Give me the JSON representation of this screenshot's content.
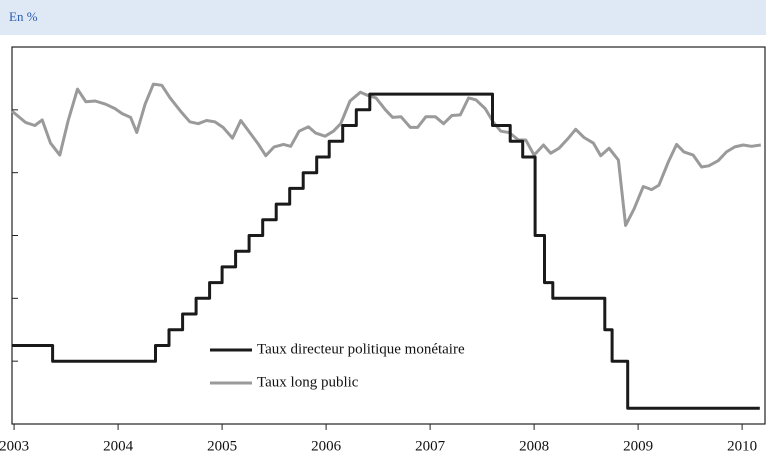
{
  "chart_data": {
    "type": "line",
    "subtitle": "En %",
    "xlim": [
      2002.98,
      2010.22
    ],
    "xticks": [
      2003,
      2004,
      2005,
      2006,
      2007,
      2008,
      2009,
      2010
    ],
    "ylim": [
      0,
      6
    ],
    "yticks": [
      0,
      1,
      2,
      3,
      4,
      5
    ],
    "series": [
      {
        "name": "Taux directeur politique monétaire",
        "color": "#1a1a1a",
        "x": [
          2002.98,
          2003.37,
          2003.37,
          2004.36,
          2004.36,
          2004.49,
          2004.49,
          2004.62,
          2004.62,
          2004.75,
          2004.75,
          2004.88,
          2004.88,
          2005.0,
          2005.0,
          2005.13,
          2005.13,
          2005.26,
          2005.26,
          2005.39,
          2005.39,
          2005.52,
          2005.52,
          2005.65,
          2005.65,
          2005.78,
          2005.78,
          2005.91,
          2005.91,
          2006.03,
          2006.03,
          2006.16,
          2006.16,
          2006.29,
          2006.29,
          2006.42,
          2006.42,
          2007.6,
          2007.6,
          2007.77,
          2007.77,
          2007.89,
          2007.89,
          2008.01,
          2008.01,
          2008.1,
          2008.1,
          2008.18,
          2008.18,
          2008.68,
          2008.68,
          2008.75,
          2008.75,
          2008.9,
          2008.9,
          2010.17
        ],
        "values": [
          1.25,
          1.25,
          1.0,
          1.0,
          1.25,
          1.25,
          1.5,
          1.5,
          1.75,
          1.75,
          2.0,
          2.0,
          2.25,
          2.25,
          2.5,
          2.5,
          2.75,
          2.75,
          3.0,
          3.0,
          3.25,
          3.25,
          3.5,
          3.5,
          3.75,
          3.75,
          4.0,
          4.0,
          4.25,
          4.25,
          4.5,
          4.5,
          4.75,
          4.75,
          5.0,
          5.0,
          5.25,
          5.25,
          4.75,
          4.75,
          4.5,
          4.5,
          4.25,
          4.25,
          3.0,
          3.0,
          2.25,
          2.25,
          2.0,
          2.0,
          1.5,
          1.5,
          1.0,
          1.0,
          0.25,
          0.25
        ]
      },
      {
        "name": "Taux long public",
        "color": "#9a9a9a",
        "x": [
          2002.98,
          2003.11,
          2003.2,
          2003.27,
          2003.35,
          2003.44,
          2003.52,
          2003.61,
          2003.69,
          2003.78,
          2003.88,
          2003.97,
          2004.04,
          2004.12,
          2004.18,
          2004.26,
          2004.34,
          2004.42,
          2004.5,
          2004.6,
          2004.69,
          2004.77,
          2004.85,
          2004.93,
          2005.01,
          2005.1,
          2005.18,
          2005.27,
          2005.35,
          2005.42,
          2005.5,
          2005.59,
          2005.66,
          2005.74,
          2005.83,
          2005.9,
          2005.99,
          2006.07,
          2006.14,
          2006.23,
          2006.33,
          2006.4,
          2006.48,
          2006.57,
          2006.64,
          2006.72,
          2006.81,
          2006.88,
          2006.96,
          2007.05,
          2007.13,
          2007.21,
          2007.29,
          2007.37,
          2007.44,
          2007.53,
          2007.61,
          2007.68,
          2007.76,
          2007.85,
          2007.92,
          2008.0,
          2008.09,
          2008.16,
          2008.24,
          2008.33,
          2008.4,
          2008.48,
          2008.57,
          2008.64,
          2008.72,
          2008.81,
          2008.88,
          2008.96,
          2009.05,
          2009.13,
          2009.2,
          2009.29,
          2009.37,
          2009.44,
          2009.53,
          2009.61,
          2009.68,
          2009.77,
          2009.85,
          2009.93,
          2010.01,
          2010.09,
          2010.18
        ],
        "values": [
          4.98,
          4.8,
          4.75,
          4.84,
          4.47,
          4.28,
          4.83,
          5.33,
          5.13,
          5.14,
          5.09,
          5.02,
          4.94,
          4.88,
          4.64,
          5.09,
          5.41,
          5.39,
          5.19,
          4.98,
          4.81,
          4.78,
          4.83,
          4.81,
          4.72,
          4.55,
          4.83,
          4.63,
          4.45,
          4.27,
          4.41,
          4.45,
          4.42,
          4.66,
          4.73,
          4.63,
          4.58,
          4.66,
          4.78,
          5.14,
          5.28,
          5.23,
          5.19,
          5.0,
          4.88,
          4.89,
          4.72,
          4.72,
          4.89,
          4.89,
          4.78,
          4.91,
          4.92,
          5.19,
          5.16,
          5.02,
          4.8,
          4.66,
          4.64,
          4.52,
          4.52,
          4.28,
          4.44,
          4.31,
          4.39,
          4.55,
          4.69,
          4.56,
          4.47,
          4.27,
          4.39,
          4.2,
          3.16,
          3.42,
          3.78,
          3.73,
          3.8,
          4.17,
          4.45,
          4.33,
          4.28,
          4.09,
          4.11,
          4.19,
          4.33,
          4.41,
          4.44,
          4.42,
          4.44
        ]
      }
    ]
  }
}
